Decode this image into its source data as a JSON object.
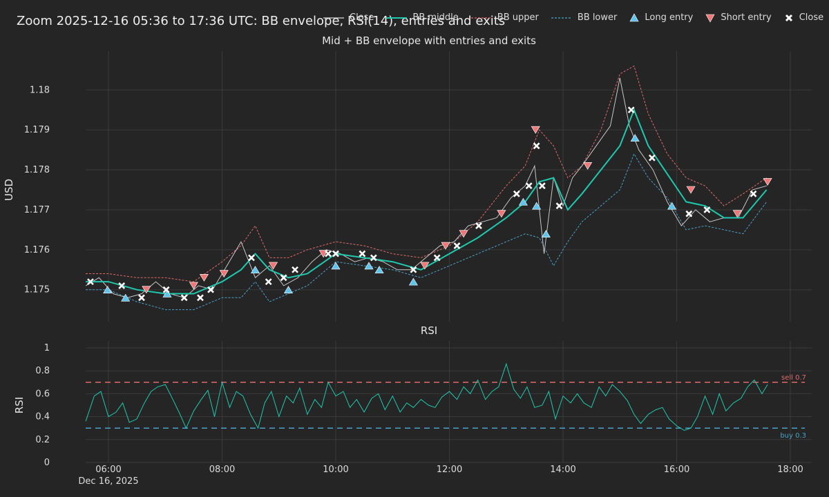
{
  "title": "Zoom 2025-12-16 05:36 to 17:36 UTC: BB envelope, RSI(14), entries and exits",
  "legend": [
    {
      "label": "Close",
      "kind": "line",
      "color": "#d9d9d9",
      "dash": ""
    },
    {
      "label": "BB middle",
      "kind": "line",
      "color": "#1fc9ad",
      "dash": ""
    },
    {
      "label": "BB upper",
      "kind": "line",
      "color": "#e06b6b",
      "dash": "3,2"
    },
    {
      "label": "BB lower",
      "kind": "line",
      "color": "#4aa3c8",
      "dash": "3,2"
    },
    {
      "label": "Long entry",
      "kind": "tri-up",
      "color": "#5fc3ea"
    },
    {
      "label": "Short entry",
      "kind": "tri-down",
      "color": "#f07777"
    },
    {
      "label": "Close",
      "kind": "x",
      "color": "#ffffff"
    }
  ],
  "colors": {
    "bg": "#252526",
    "grid": "#3a3a3c",
    "text": "#dcdcdc",
    "close": "#c8c8c8",
    "middle": "#1fc9ad",
    "upper": "#e06b6b",
    "lower": "#4aa3c8",
    "long": "#5fc3ea",
    "short": "#f07777",
    "exit": "#ffffff",
    "rsi": "#1fc9ad"
  },
  "chart_data": [
    {
      "type": "line",
      "title": "Mid + BB envelope with entries and exits",
      "ylabel": "USD",
      "xlim": [
        "05:36",
        "17:36"
      ],
      "ylim": [
        1.1742,
        1.1808
      ],
      "yticks": [
        1.175,
        1.176,
        1.177,
        1.178,
        1.179,
        1.18
      ],
      "xticks": [
        {
          "t": "06:00",
          "label": "06:00",
          "sub": "Dec 16, 2025"
        },
        {
          "t": "08:00",
          "label": "08:00",
          "sub": ""
        },
        {
          "t": "10:00",
          "label": "10:00",
          "sub": ""
        },
        {
          "t": "12:00",
          "label": "12:00",
          "sub": ""
        },
        {
          "t": "14:00",
          "label": "14:00",
          "sub": ""
        },
        {
          "t": "16:00",
          "label": "16:00",
          "sub": ""
        },
        {
          "t": "18:00",
          "label": "18:00",
          "sub": ""
        }
      ],
      "series": [
        {
          "name": "Close",
          "x": [
            "05:36",
            "05:50",
            "06:05",
            "06:20",
            "06:35",
            "06:50",
            "07:05",
            "07:20",
            "07:35",
            "07:50",
            "08:05",
            "08:20",
            "08:35",
            "08:50",
            "09:05",
            "09:20",
            "09:35",
            "09:50",
            "10:05",
            "10:20",
            "10:35",
            "10:50",
            "11:05",
            "11:20",
            "11:35",
            "11:50",
            "12:05",
            "12:20",
            "12:35",
            "12:50",
            "13:05",
            "13:20",
            "13:30",
            "13:40",
            "13:50",
            "14:00",
            "14:10",
            "14:20",
            "14:35",
            "14:50",
            "15:00",
            "15:10",
            "15:20",
            "15:35",
            "15:50",
            "16:05",
            "16:20",
            "16:35",
            "16:50",
            "17:05",
            "17:20",
            "17:35"
          ],
          "values": [
            1.1751,
            1.1753,
            1.1749,
            1.1748,
            1.1749,
            1.1752,
            1.1749,
            1.1748,
            1.1751,
            1.175,
            1.1756,
            1.1762,
            1.1753,
            1.1756,
            1.1751,
            1.1753,
            1.1757,
            1.176,
            1.1759,
            1.1757,
            1.1758,
            1.1757,
            1.1755,
            1.1755,
            1.1758,
            1.1761,
            1.1762,
            1.1766,
            1.1767,
            1.1768,
            1.1773,
            1.1776,
            1.1781,
            1.1759,
            1.1778,
            1.1771,
            1.1778,
            1.1781,
            1.1786,
            1.1791,
            1.1803,
            1.1791,
            1.1785,
            1.178,
            1.1772,
            1.1766,
            1.177,
            1.1767,
            1.1768,
            1.1768,
            1.1775,
            1.1776
          ]
        },
        {
          "name": "BB middle",
          "x": [
            "05:36",
            "06:00",
            "06:30",
            "07:00",
            "07:30",
            "08:00",
            "08:20",
            "08:35",
            "08:50",
            "09:10",
            "09:30",
            "10:00",
            "10:30",
            "11:00",
            "11:30",
            "12:00",
            "12:30",
            "13:00",
            "13:20",
            "13:35",
            "13:50",
            "14:05",
            "14:20",
            "14:40",
            "15:00",
            "15:15",
            "15:30",
            "15:50",
            "16:10",
            "16:30",
            "16:50",
            "17:10",
            "17:35"
          ],
          "values": [
            1.1752,
            1.1752,
            1.175,
            1.1749,
            1.1749,
            1.1752,
            1.1755,
            1.1759,
            1.1755,
            1.1753,
            1.1754,
            1.1759,
            1.1758,
            1.1757,
            1.1755,
            1.1759,
            1.1763,
            1.1768,
            1.1772,
            1.1777,
            1.1778,
            1.177,
            1.1774,
            1.178,
            1.1786,
            1.1795,
            1.1786,
            1.1779,
            1.1772,
            1.1771,
            1.1768,
            1.1768,
            1.1775
          ]
        },
        {
          "name": "BB upper",
          "x": [
            "05:36",
            "06:00",
            "06:30",
            "07:00",
            "07:30",
            "08:00",
            "08:20",
            "08:35",
            "08:50",
            "09:10",
            "09:30",
            "10:00",
            "10:30",
            "11:00",
            "11:30",
            "12:00",
            "12:30",
            "13:00",
            "13:20",
            "13:35",
            "13:50",
            "14:05",
            "14:20",
            "14:40",
            "15:00",
            "15:15",
            "15:30",
            "15:50",
            "16:10",
            "16:30",
            "16:50",
            "17:10",
            "17:35"
          ],
          "values": [
            1.1754,
            1.1754,
            1.1753,
            1.1753,
            1.1752,
            1.1757,
            1.1761,
            1.1766,
            1.1758,
            1.1758,
            1.176,
            1.1762,
            1.1761,
            1.1759,
            1.1758,
            1.1761,
            1.1767,
            1.1776,
            1.1781,
            1.179,
            1.1786,
            1.1778,
            1.1781,
            1.179,
            1.1804,
            1.1806,
            1.1794,
            1.1784,
            1.1778,
            1.1776,
            1.1771,
            1.1774,
            1.1778
          ]
        },
        {
          "name": "BB lower",
          "x": [
            "05:36",
            "06:00",
            "06:30",
            "07:00",
            "07:30",
            "08:00",
            "08:20",
            "08:35",
            "08:50",
            "09:10",
            "09:30",
            "10:00",
            "10:30",
            "11:00",
            "11:30",
            "12:00",
            "12:30",
            "13:00",
            "13:20",
            "13:35",
            "13:50",
            "14:05",
            "14:20",
            "14:40",
            "15:00",
            "15:15",
            "15:30",
            "15:50",
            "16:10",
            "16:30",
            "16:50",
            "17:10",
            "17:35"
          ],
          "values": [
            1.175,
            1.175,
            1.1747,
            1.1745,
            1.1745,
            1.1748,
            1.1748,
            1.1752,
            1.1747,
            1.1749,
            1.1751,
            1.1757,
            1.1756,
            1.1755,
            1.1753,
            1.1756,
            1.1759,
            1.1762,
            1.1764,
            1.1763,
            1.1756,
            1.1762,
            1.1767,
            1.1771,
            1.1775,
            1.1784,
            1.1778,
            1.1773,
            1.1765,
            1.1766,
            1.1765,
            1.1764,
            1.1772
          ]
        }
      ],
      "long_entries": [
        {
          "x": "05:59",
          "y": 1.175
        },
        {
          "x": "06:18",
          "y": 1.1748
        },
        {
          "x": "07:02",
          "y": 1.1749
        },
        {
          "x": "08:35",
          "y": 1.1755
        },
        {
          "x": "09:10",
          "y": 1.175
        },
        {
          "x": "10:00",
          "y": 1.1756
        },
        {
          "x": "10:35",
          "y": 1.1756
        },
        {
          "x": "10:46",
          "y": 1.1755
        },
        {
          "x": "11:22",
          "y": 1.1752
        },
        {
          "x": "13:18",
          "y": 1.1772
        },
        {
          "x": "13:32",
          "y": 1.1771
        },
        {
          "x": "13:42",
          "y": 1.1764
        },
        {
          "x": "15:16",
          "y": 1.1788
        },
        {
          "x": "15:55",
          "y": 1.1771
        }
      ],
      "short_entries": [
        {
          "x": "06:40",
          "y": 1.175
        },
        {
          "x": "07:30",
          "y": 1.1751
        },
        {
          "x": "07:41",
          "y": 1.1753
        },
        {
          "x": "08:02",
          "y": 1.1754
        },
        {
          "x": "08:54",
          "y": 1.1756
        },
        {
          "x": "09:47",
          "y": 1.1759
        },
        {
          "x": "11:34",
          "y": 1.1756
        },
        {
          "x": "11:56",
          "y": 1.1761
        },
        {
          "x": "12:15",
          "y": 1.1764
        },
        {
          "x": "12:55",
          "y": 1.1769
        },
        {
          "x": "13:31",
          "y": 1.179
        },
        {
          "x": "14:26",
          "y": 1.1781
        },
        {
          "x": "16:15",
          "y": 1.1775
        },
        {
          "x": "17:04",
          "y": 1.1769
        },
        {
          "x": "17:36",
          "y": 1.1777
        }
      ],
      "exits": [
        {
          "x": "05:41",
          "y": 1.1752
        },
        {
          "x": "06:14",
          "y": 1.1751
        },
        {
          "x": "06:35",
          "y": 1.1748
        },
        {
          "x": "07:01",
          "y": 1.175
        },
        {
          "x": "07:20",
          "y": 1.1748
        },
        {
          "x": "07:37",
          "y": 1.1748
        },
        {
          "x": "07:48",
          "y": 1.175
        },
        {
          "x": "08:31",
          "y": 1.1758
        },
        {
          "x": "08:49",
          "y": 1.1752
        },
        {
          "x": "09:05",
          "y": 1.1753
        },
        {
          "x": "09:17",
          "y": 1.1755
        },
        {
          "x": "09:52",
          "y": 1.1759
        },
        {
          "x": "10:00",
          "y": 1.1759
        },
        {
          "x": "10:28",
          "y": 1.1759
        },
        {
          "x": "10:40",
          "y": 1.1758
        },
        {
          "x": "11:22",
          "y": 1.1755
        },
        {
          "x": "11:47",
          "y": 1.1758
        },
        {
          "x": "12:08",
          "y": 1.1761
        },
        {
          "x": "12:31",
          "y": 1.1766
        },
        {
          "x": "13:11",
          "y": 1.1774
        },
        {
          "x": "13:24",
          "y": 1.1776
        },
        {
          "x": "13:32",
          "y": 1.1786
        },
        {
          "x": "13:38",
          "y": 1.1776
        },
        {
          "x": "13:56",
          "y": 1.1771
        },
        {
          "x": "15:12",
          "y": 1.1795
        },
        {
          "x": "15:34",
          "y": 1.1783
        },
        {
          "x": "16:13",
          "y": 1.1769
        },
        {
          "x": "16:32",
          "y": 1.177
        },
        {
          "x": "17:21",
          "y": 1.1774
        }
      ]
    },
    {
      "type": "line",
      "title": "RSI",
      "ylabel": "RSI",
      "xlim": [
        "05:36",
        "17:36"
      ],
      "ylim": [
        0,
        1
      ],
      "yticks": [
        0,
        0.2,
        0.4,
        0.6,
        0.8,
        1
      ],
      "thresholds": [
        {
          "label": "sell 0.7",
          "value": 0.7,
          "color": "#e06b6b"
        },
        {
          "label": "buy 0.3",
          "value": 0.3,
          "color": "#4aa3c8"
        }
      ],
      "series": [
        {
          "name": "RSI",
          "x": [
            "05:36",
            "05:45",
            "05:52",
            "06:00",
            "06:08",
            "06:15",
            "06:22",
            "06:30",
            "06:38",
            "06:45",
            "06:52",
            "07:00",
            "07:08",
            "07:15",
            "07:22",
            "07:30",
            "07:38",
            "07:45",
            "07:52",
            "08:00",
            "08:08",
            "08:15",
            "08:22",
            "08:30",
            "08:38",
            "08:45",
            "08:52",
            "09:00",
            "09:08",
            "09:15",
            "09:22",
            "09:30",
            "09:38",
            "09:45",
            "09:52",
            "10:00",
            "10:08",
            "10:15",
            "10:22",
            "10:30",
            "10:38",
            "10:45",
            "10:52",
            "11:00",
            "11:08",
            "11:15",
            "11:22",
            "11:30",
            "11:38",
            "11:45",
            "11:52",
            "12:00",
            "12:08",
            "12:15",
            "12:22",
            "12:30",
            "12:38",
            "12:45",
            "12:52",
            "13:00",
            "13:08",
            "13:15",
            "13:22",
            "13:30",
            "13:38",
            "13:45",
            "13:52",
            "14:00",
            "14:08",
            "14:15",
            "14:22",
            "14:30",
            "14:38",
            "14:45",
            "14:52",
            "15:00",
            "15:08",
            "15:15",
            "15:22",
            "15:30",
            "15:38",
            "15:45",
            "15:52",
            "16:00",
            "16:08",
            "16:15",
            "16:22",
            "16:30",
            "16:38",
            "16:45",
            "16:52",
            "17:00",
            "17:08",
            "17:15",
            "17:22",
            "17:30",
            "17:36"
          ],
          "values": [
            0.36,
            0.58,
            0.62,
            0.4,
            0.44,
            0.52,
            0.35,
            0.38,
            0.52,
            0.62,
            0.66,
            0.68,
            0.55,
            0.43,
            0.3,
            0.45,
            0.55,
            0.63,
            0.4,
            0.7,
            0.48,
            0.62,
            0.58,
            0.42,
            0.3,
            0.52,
            0.62,
            0.4,
            0.58,
            0.52,
            0.65,
            0.42,
            0.55,
            0.48,
            0.7,
            0.58,
            0.62,
            0.48,
            0.55,
            0.44,
            0.56,
            0.6,
            0.46,
            0.58,
            0.44,
            0.52,
            0.48,
            0.55,
            0.5,
            0.48,
            0.57,
            0.62,
            0.55,
            0.66,
            0.6,
            0.72,
            0.55,
            0.62,
            0.66,
            0.86,
            0.64,
            0.56,
            0.66,
            0.48,
            0.5,
            0.62,
            0.38,
            0.58,
            0.52,
            0.6,
            0.52,
            0.48,
            0.66,
            0.58,
            0.68,
            0.62,
            0.54,
            0.42,
            0.34,
            0.42,
            0.46,
            0.48,
            0.38,
            0.32,
            0.28,
            0.3,
            0.4,
            0.58,
            0.42,
            0.6,
            0.45,
            0.52,
            0.56,
            0.66,
            0.72,
            0.6,
            0.68
          ]
        }
      ]
    }
  ]
}
